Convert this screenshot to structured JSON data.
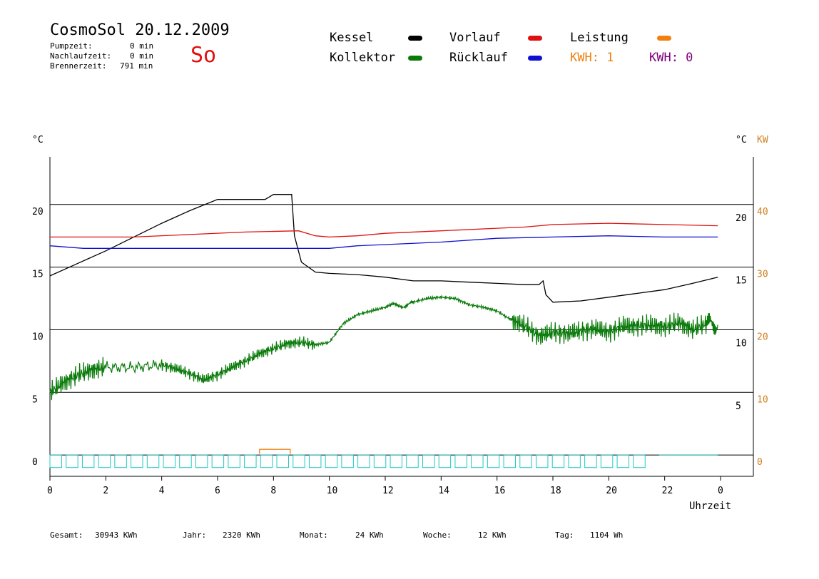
{
  "header": {
    "title": "CosmoSol 20.12.2009",
    "day": "So",
    "pumpzeit_label": "Pumpzeit:",
    "pumpzeit_value": "0 min",
    "nachlaufzeit_label": "Nachlaufzeit:",
    "nachlaufzeit_value": "0 min",
    "brennerzeit_label": "Brennerzeit:",
    "brennerzeit_value": "791 min"
  },
  "legend": {
    "kessel": "Kessel",
    "kollektor": "Kollektor",
    "vorlauf": "Vorlauf",
    "ruecklauf": "Rücklauf",
    "leistung": "Leistung",
    "kwh1": "KWH: 1",
    "kwh2": "KWH: 0",
    "colors": {
      "kessel": "#000000",
      "kollektor": "#0a7a0a",
      "vorlauf": "#e01010",
      "ruecklauf": "#1010d0",
      "leistung": "#f08010",
      "kwh2": "#800080",
      "pump": "#20c8c8"
    }
  },
  "axes": {
    "left_unit": "°C",
    "right_unit_c": "°C",
    "right_unit_kw": "KW",
    "xlabel": "Uhrzeit"
  },
  "footer": {
    "gesamt_label": "Gesamt:",
    "gesamt_value": "30943 KWh",
    "jahr_label": "Jahr:",
    "jahr_value": "2320 KWh",
    "monat_label": "Monat:",
    "monat_value": "24 KWh",
    "woche_label": "Woche:",
    "woche_value": "12 KWh",
    "tag_label": "Tag:",
    "tag_value": "1104 Wh"
  },
  "chart_data": {
    "type": "line",
    "title": "CosmoSol 20.12.2009",
    "xlabel": "Uhrzeit",
    "ylabel": "°C",
    "xlim": [
      0,
      24
    ],
    "ylim": [
      -1.7,
      23.8
    ],
    "x_ticks": [
      "0",
      "2",
      "4",
      "6",
      "8",
      "10",
      "12",
      "14",
      "16",
      "18",
      "20",
      "22",
      "0"
    ],
    "y_left_ticks": [
      0,
      5,
      10,
      15,
      20
    ],
    "y_right_c_ticks": [
      5,
      10,
      15,
      20
    ],
    "y_right_kw_ticks": [
      0,
      10,
      20,
      30,
      40
    ],
    "grid": "horizontal",
    "series": [
      {
        "name": "Kessel",
        "color": "#000000",
        "points": [
          [
            0,
            14.3
          ],
          [
            1,
            15.3
          ],
          [
            2,
            16.3
          ],
          [
            3,
            17.4
          ],
          [
            4,
            18.5
          ],
          [
            5,
            19.5
          ],
          [
            6,
            20.4
          ],
          [
            6.1,
            20.4
          ],
          [
            7.7,
            20.4
          ],
          [
            8.0,
            20.8
          ],
          [
            8.65,
            20.8
          ],
          [
            8.75,
            17.5
          ],
          [
            9.0,
            15.4
          ],
          [
            9.5,
            14.6
          ],
          [
            10,
            14.5
          ],
          [
            11,
            14.4
          ],
          [
            12,
            14.2
          ],
          [
            13,
            13.9
          ],
          [
            14,
            13.9
          ],
          [
            15,
            13.8
          ],
          [
            16,
            13.7
          ],
          [
            17,
            13.6
          ],
          [
            17.5,
            13.6
          ],
          [
            17.65,
            13.9
          ],
          [
            17.75,
            12.8
          ],
          [
            18.0,
            12.2
          ],
          [
            19,
            12.3
          ],
          [
            20,
            12.6
          ],
          [
            21,
            12.9
          ],
          [
            22,
            13.2
          ],
          [
            23,
            13.7
          ],
          [
            23.9,
            14.2
          ]
        ]
      },
      {
        "name": "Kollektor",
        "color": "#0a7a0a",
        "points": [
          [
            0,
            5.0
          ],
          [
            0.5,
            5.8
          ],
          [
            1,
            6.4
          ],
          [
            1.5,
            6.8
          ],
          [
            2,
            7.0
          ],
          [
            3,
            7.0
          ],
          [
            4,
            7.2
          ],
          [
            4.5,
            6.9
          ],
          [
            5,
            6.5
          ],
          [
            5.5,
            6.0
          ],
          [
            6,
            6.4
          ],
          [
            6.5,
            7.0
          ],
          [
            7,
            7.5
          ],
          [
            7.5,
            8.1
          ],
          [
            8,
            8.5
          ],
          [
            8.5,
            8.9
          ],
          [
            9,
            9.0
          ],
          [
            9.5,
            8.8
          ],
          [
            10,
            9.0
          ],
          [
            10.5,
            10.5
          ],
          [
            11,
            11.2
          ],
          [
            11.5,
            11.5
          ],
          [
            12,
            11.8
          ],
          [
            12.3,
            12.1
          ],
          [
            12.6,
            11.8
          ],
          [
            13,
            12.2
          ],
          [
            13.5,
            12.5
          ],
          [
            14,
            12.6
          ],
          [
            14.5,
            12.5
          ],
          [
            15,
            12.0
          ],
          [
            15.5,
            11.8
          ],
          [
            16,
            11.5
          ],
          [
            16.5,
            10.8
          ],
          [
            17,
            10.3
          ],
          [
            17.5,
            9.5
          ],
          [
            18,
            9.8
          ],
          [
            18.5,
            9.7
          ],
          [
            19,
            9.9
          ],
          [
            19.5,
            10.1
          ],
          [
            20,
            9.8
          ],
          [
            20.5,
            10.3
          ],
          [
            21,
            10.3
          ],
          [
            21.5,
            10.4
          ],
          [
            22,
            10.2
          ],
          [
            22.5,
            10.6
          ],
          [
            23,
            10.0
          ],
          [
            23.5,
            10.5
          ],
          [
            23.9,
            10.4
          ]
        ]
      },
      {
        "name": "Vorlauf",
        "color": "#e01010",
        "points": [
          [
            0,
            17.4
          ],
          [
            3,
            17.4
          ],
          [
            5,
            17.6
          ],
          [
            7,
            17.8
          ],
          [
            8.9,
            17.9
          ],
          [
            9.5,
            17.5
          ],
          [
            10,
            17.4
          ],
          [
            11,
            17.5
          ],
          [
            12,
            17.7
          ],
          [
            14,
            17.9
          ],
          [
            16,
            18.1
          ],
          [
            17,
            18.2
          ],
          [
            18,
            18.4
          ],
          [
            20,
            18.5
          ],
          [
            22,
            18.4
          ],
          [
            23.9,
            18.3
          ]
        ]
      },
      {
        "name": "Rücklauf",
        "color": "#1010d0",
        "points": [
          [
            0,
            16.7
          ],
          [
            1.2,
            16.5
          ],
          [
            3,
            16.5
          ],
          [
            6,
            16.5
          ],
          [
            8.5,
            16.5
          ],
          [
            9.5,
            16.5
          ],
          [
            10,
            16.5
          ],
          [
            11,
            16.7
          ],
          [
            12,
            16.8
          ],
          [
            14,
            17.0
          ],
          [
            16,
            17.3
          ],
          [
            18,
            17.4
          ],
          [
            20,
            17.5
          ],
          [
            22,
            17.4
          ],
          [
            23.9,
            17.4
          ]
        ]
      },
      {
        "name": "Leistung",
        "color": "#f08010",
        "points": [
          [
            7.5,
            0.1
          ],
          [
            7.5,
            0.45
          ],
          [
            8.6,
            0.45
          ],
          [
            8.6,
            0.1
          ]
        ]
      }
    ]
  }
}
